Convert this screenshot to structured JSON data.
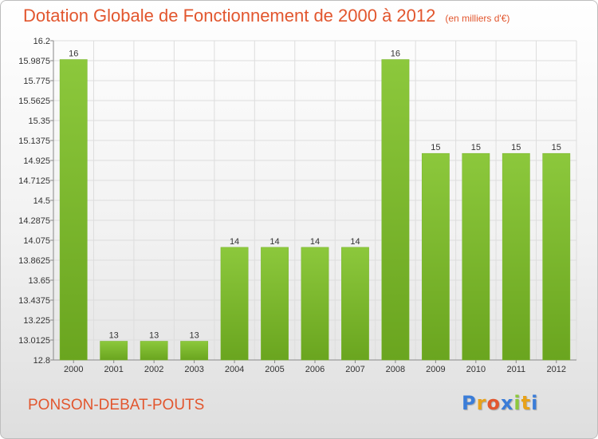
{
  "chart_data": {
    "type": "bar",
    "title": "Dotation Globale de Fonctionnement de 2000 à 2012",
    "subtitle": "(en milliers d'€)",
    "categories": [
      "2000",
      "2001",
      "2002",
      "2003",
      "2004",
      "2005",
      "2006",
      "2007",
      "2008",
      "2009",
      "2010",
      "2011",
      "2012"
    ],
    "values": [
      16,
      13,
      13,
      13,
      14,
      14,
      14,
      14,
      16,
      15,
      15,
      15,
      15
    ],
    "value_labels": [
      "16",
      "13",
      "13",
      "13",
      "14",
      "14",
      "14",
      "14",
      "16",
      "15",
      "15",
      "15",
      "15"
    ],
    "ylim": [
      12.8,
      16.2
    ],
    "yticks": [
      "12.8",
      "13.0125",
      "13.225",
      "13.4375",
      "13.65",
      "13.8625",
      "14.075",
      "14.2875",
      "14.5",
      "14.7125",
      "14.925",
      "15.1375",
      "15.35",
      "15.5625",
      "15.775",
      "15.9875",
      "16.2"
    ],
    "grid": true,
    "colors": {
      "bar": "#8cc83c",
      "bar_dark": "#6aa51f",
      "grid": "#dddddd",
      "axis": "#888888"
    }
  },
  "commune_name": "PONSON-DEBAT-POUTS",
  "logo": {
    "text": "Proxiti",
    "letters": [
      "P",
      "r",
      "o",
      "x",
      "i",
      "t",
      "i"
    ],
    "colors": [
      "#3b7dd8",
      "#e8a21a",
      "#e2562e",
      "#3b7dd8",
      "#8cc83c",
      "#e8a21a",
      "#3b7dd8"
    ]
  }
}
